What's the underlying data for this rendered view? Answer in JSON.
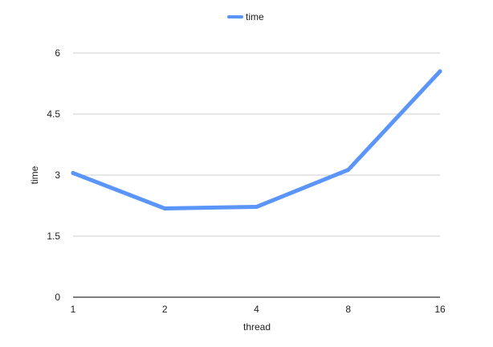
{
  "chart_data": {
    "type": "line",
    "title": "",
    "categories": [
      "1",
      "2",
      "4",
      "8",
      "16"
    ],
    "series": [
      {
        "name": "time",
        "values": [
          3.05,
          2.18,
          2.22,
          3.13,
          5.55
        ],
        "color": "#5b95f9"
      }
    ],
    "xlabel": "thread",
    "ylabel": "time",
    "ylim": [
      0,
      6
    ],
    "yticks": [
      "0",
      "1.5",
      "3",
      "4.5",
      "6"
    ],
    "grid": true,
    "legend": "top-center",
    "colors": {
      "grid": "#cccccc",
      "axis": "#333333",
      "line": "#5b95f9"
    }
  }
}
